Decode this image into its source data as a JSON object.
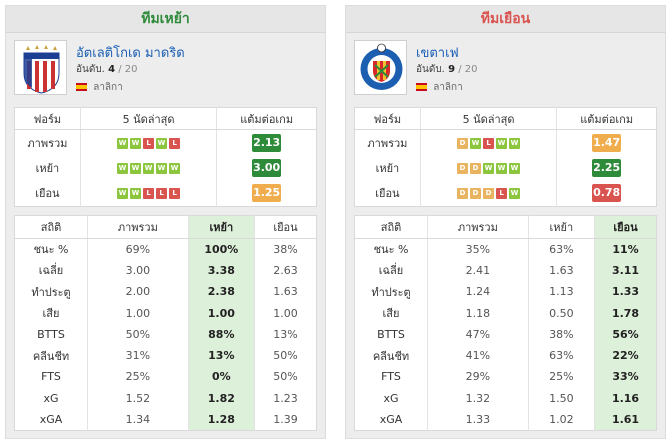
{
  "home": {
    "header": "ทีมเหย้า",
    "team_name": "อัตเลติโกเด มาดริด",
    "rank_label": "อันดับ.",
    "rank": "4",
    "rank_total": "/ 20",
    "league": "ลาลิกา",
    "form_headers": [
      "ฟอร์ม",
      "5 นัดล่าสุด",
      "แต้มต่อเกม"
    ],
    "form_rows": [
      {
        "label": "ภาพรวม",
        "results": [
          "W",
          "W",
          "L",
          "W",
          "L"
        ],
        "ppg": "2.13",
        "ppg_color": "green"
      },
      {
        "label": "เหย้า",
        "results": [
          "W",
          "W",
          "W",
          "W",
          "W"
        ],
        "ppg": "3.00",
        "ppg_color": "green"
      },
      {
        "label": "เยือน",
        "results": [
          "W",
          "W",
          "L",
          "L",
          "L"
        ],
        "ppg": "1.25",
        "ppg_color": "yellow"
      }
    ],
    "stat_headers": [
      "สถิติ",
      "ภาพรวม",
      "เหย้า",
      "เยือน"
    ],
    "stat_rows": [
      {
        "label": "ชนะ %",
        "overall": "69%",
        "home": "100%",
        "away": "38%"
      },
      {
        "label": "เฉลี่ย",
        "overall": "3.00",
        "home": "3.38",
        "away": "2.63"
      },
      {
        "label": "ทำประตู",
        "overall": "2.00",
        "home": "2.38",
        "away": "1.63"
      },
      {
        "label": "เสีย",
        "overall": "1.00",
        "home": "1.00",
        "away": "1.00"
      },
      {
        "label": "BTTS",
        "overall": "50%",
        "home": "88%",
        "away": "13%"
      },
      {
        "label": "คลีนชีท",
        "overall": "31%",
        "home": "13%",
        "away": "50%"
      },
      {
        "label": "FTS",
        "overall": "25%",
        "home": "0%",
        "away": "50%"
      },
      {
        "label": "xG",
        "overall": "1.52",
        "home": "1.82",
        "away": "1.23"
      },
      {
        "label": "xGA",
        "overall": "1.34",
        "home": "1.28",
        "away": "1.39"
      }
    ]
  },
  "away": {
    "header": "ทีมเยือน",
    "team_name": "เขตาเฟ",
    "rank_label": "อันดับ.",
    "rank": "9",
    "rank_total": "/ 20",
    "league": "ลาลิกา",
    "form_headers": [
      "ฟอร์ม",
      "5 นัดล่าสุด",
      "แต้มต่อเกม"
    ],
    "form_rows": [
      {
        "label": "ภาพรวม",
        "results": [
          "D",
          "W",
          "L",
          "W",
          "W"
        ],
        "ppg": "1.47",
        "ppg_color": "yellow"
      },
      {
        "label": "เหย้า",
        "results": [
          "D",
          "D",
          "W",
          "W",
          "W"
        ],
        "ppg": "2.25",
        "ppg_color": "green"
      },
      {
        "label": "เยือน",
        "results": [
          "D",
          "D",
          "D",
          "L",
          "W"
        ],
        "ppg": "0.78",
        "ppg_color": "red"
      }
    ],
    "stat_headers": [
      "สถิติ",
      "ภาพรวม",
      "เหย้า",
      "เยือน"
    ],
    "stat_rows": [
      {
        "label": "ชนะ %",
        "overall": "35%",
        "home": "63%",
        "away": "11%"
      },
      {
        "label": "เฉลี่ย",
        "overall": "2.41",
        "home": "1.63",
        "away": "3.11"
      },
      {
        "label": "ทำประตู",
        "overall": "1.24",
        "home": "1.13",
        "away": "1.33"
      },
      {
        "label": "เสีย",
        "overall": "1.18",
        "home": "0.50",
        "away": "1.78"
      },
      {
        "label": "BTTS",
        "overall": "47%",
        "home": "38%",
        "away": "56%"
      },
      {
        "label": "คลีนชีท",
        "overall": "41%",
        "home": "63%",
        "away": "22%"
      },
      {
        "label": "FTS",
        "overall": "29%",
        "home": "25%",
        "away": "33%"
      },
      {
        "label": "xG",
        "overall": "1.32",
        "home": "1.50",
        "away": "1.16"
      },
      {
        "label": "xGA",
        "overall": "1.33",
        "home": "1.02",
        "away": "1.61"
      }
    ]
  }
}
